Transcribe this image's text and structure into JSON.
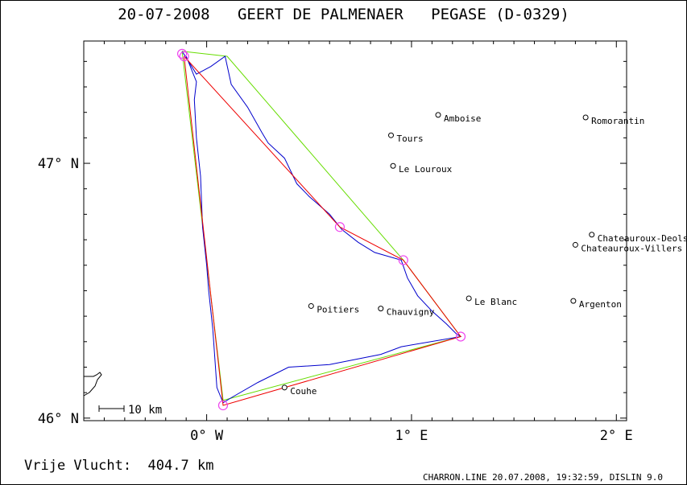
{
  "header": {
    "date": "20-07-2008",
    "pilot": "GEERT DE PALMENAER",
    "glider": "PEGASE (D-0329)"
  },
  "axes": {
    "y_ticks": [
      {
        "value": 47,
        "label": "47° N"
      },
      {
        "value": 46,
        "label": "46° N"
      }
    ],
    "x_ticks": [
      {
        "value": 0,
        "label": "0° W"
      },
      {
        "value": 1,
        "label": "1° E"
      },
      {
        "value": 2,
        "label": "2° E"
      }
    ],
    "lon_range": [
      -0.6,
      2.05
    ],
    "lat_range": [
      45.99,
      47.48
    ]
  },
  "scale_bar": {
    "label": "10 km"
  },
  "footer": {
    "distance_label": "Vrije Vlucht:",
    "distance_value": "404.7 km",
    "credits": "CHARRON.LINE 20.07.2008, 19:32:59, DISLIN 9.0"
  },
  "places": [
    {
      "name": "Amboise",
      "lon": 1.13,
      "lat": 47.19
    },
    {
      "name": "Tours",
      "lon": 0.9,
      "lat": 47.11
    },
    {
      "name": "Le Louroux",
      "lon": 0.91,
      "lat": 46.99
    },
    {
      "name": "Romorantin",
      "lon": 1.85,
      "lat": 47.18
    },
    {
      "name": "Chateauroux-Deols",
      "lon": 1.88,
      "lat": 46.72
    },
    {
      "name": "Chateauroux-Villers",
      "lon": 1.8,
      "lat": 46.68
    },
    {
      "name": "Le Blanc",
      "lon": 1.28,
      "lat": 46.47
    },
    {
      "name": "Argenton",
      "lon": 1.79,
      "lat": 46.46
    },
    {
      "name": "Poitiers",
      "lon": 0.51,
      "lat": 46.44
    },
    {
      "name": "Chauvigny",
      "lon": 0.85,
      "lat": 46.43
    },
    {
      "name": "Couhe",
      "lon": 0.38,
      "lat": 46.12
    }
  ],
  "turnpoints": [
    {
      "lon": -0.12,
      "lat": 47.43
    },
    {
      "lon": 0.65,
      "lat": 46.75
    },
    {
      "lon": 0.96,
      "lat": 46.62
    },
    {
      "lon": 1.24,
      "lat": 46.32
    },
    {
      "lon": 0.08,
      "lat": 46.05
    },
    {
      "lon": -0.11,
      "lat": 47.42
    }
  ],
  "task_line": {
    "color": "#66dd00",
    "points": [
      {
        "lon": -0.12,
        "lat": 47.44
      },
      {
        "lon": 0.1,
        "lat": 47.42
      },
      {
        "lon": 0.96,
        "lat": 46.62
      },
      {
        "lon": 1.24,
        "lat": 46.32
      },
      {
        "lon": 0.08,
        "lat": 46.07
      },
      {
        "lon": -0.12,
        "lat": 47.44
      }
    ]
  },
  "optimized_line": {
    "color": "#ee0000",
    "points": [
      {
        "lon": -0.11,
        "lat": 47.42
      },
      {
        "lon": 0.65,
        "lat": 46.75
      },
      {
        "lon": 0.96,
        "lat": 46.62
      },
      {
        "lon": 1.24,
        "lat": 46.32
      },
      {
        "lon": 0.08,
        "lat": 46.05
      },
      {
        "lon": -0.11,
        "lat": 47.42
      }
    ]
  },
  "track": {
    "color": "#0000cc",
    "points": [
      {
        "lon": -0.12,
        "lat": 47.44
      },
      {
        "lon": -0.05,
        "lat": 47.35
      },
      {
        "lon": 0.02,
        "lat": 47.38
      },
      {
        "lon": 0.09,
        "lat": 47.42
      },
      {
        "lon": 0.12,
        "lat": 47.31
      },
      {
        "lon": 0.2,
        "lat": 47.22
      },
      {
        "lon": 0.27,
        "lat": 47.12
      },
      {
        "lon": 0.3,
        "lat": 47.08
      },
      {
        "lon": 0.38,
        "lat": 47.02
      },
      {
        "lon": 0.44,
        "lat": 46.92
      },
      {
        "lon": 0.5,
        "lat": 46.87
      },
      {
        "lon": 0.6,
        "lat": 46.8
      },
      {
        "lon": 0.66,
        "lat": 46.74
      },
      {
        "lon": 0.74,
        "lat": 46.69
      },
      {
        "lon": 0.82,
        "lat": 46.65
      },
      {
        "lon": 0.95,
        "lat": 46.62
      },
      {
        "lon": 0.98,
        "lat": 46.55
      },
      {
        "lon": 1.03,
        "lat": 46.48
      },
      {
        "lon": 1.1,
        "lat": 46.42
      },
      {
        "lon": 1.17,
        "lat": 46.37
      },
      {
        "lon": 1.22,
        "lat": 46.33
      },
      {
        "lon": 1.24,
        "lat": 46.32
      },
      {
        "lon": 0.95,
        "lat": 46.28
      },
      {
        "lon": 0.85,
        "lat": 46.25
      },
      {
        "lon": 0.6,
        "lat": 46.21
      },
      {
        "lon": 0.4,
        "lat": 46.2
      },
      {
        "lon": 0.25,
        "lat": 46.14
      },
      {
        "lon": 0.12,
        "lat": 46.08
      },
      {
        "lon": 0.08,
        "lat": 46.06
      },
      {
        "lon": 0.05,
        "lat": 46.12
      },
      {
        "lon": 0.03,
        "lat": 46.35
      },
      {
        "lon": 0.01,
        "lat": 46.5
      },
      {
        "lon": 0.0,
        "lat": 46.6
      },
      {
        "lon": -0.02,
        "lat": 46.75
      },
      {
        "lon": -0.03,
        "lat": 46.95
      },
      {
        "lon": -0.05,
        "lat": 47.1
      },
      {
        "lon": -0.06,
        "lat": 47.25
      },
      {
        "lon": -0.05,
        "lat": 47.32
      },
      {
        "lon": -0.1,
        "lat": 47.42
      }
    ]
  }
}
